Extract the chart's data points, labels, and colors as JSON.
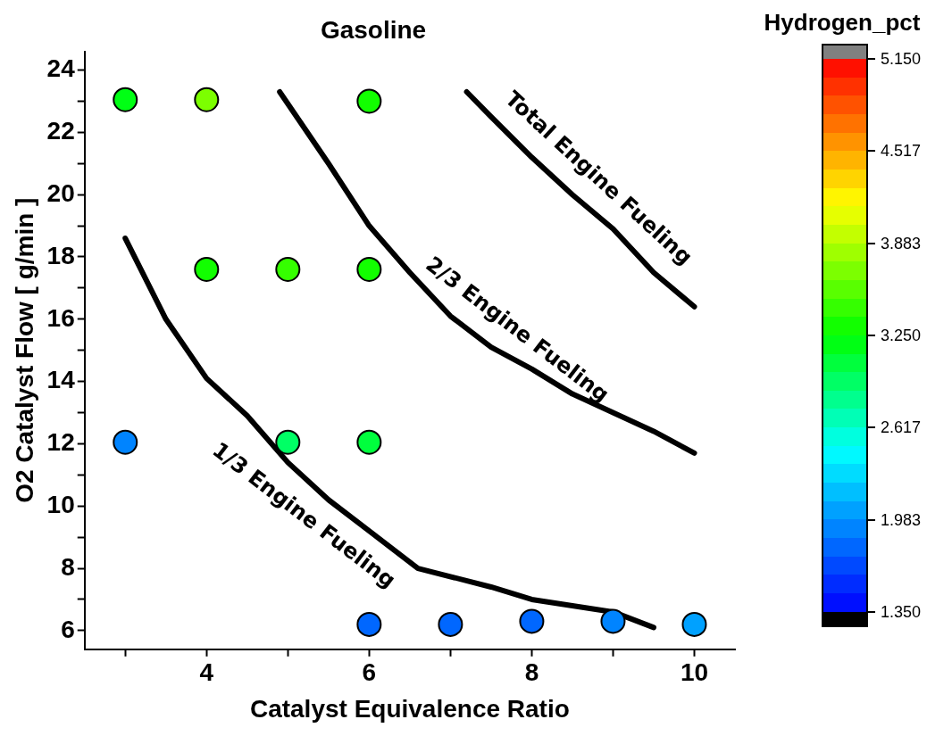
{
  "chart_data": {
    "type": "scatter",
    "title": "Gasoline",
    "xlabel": "Catalyst Equivalence Ratio",
    "ylabel": "O2 Catalyst Flow [ g/min ]",
    "clabel": "Hydrogen_pct",
    "xlim": [
      2.5,
      10.5
    ],
    "xticks": [
      {
        "value": 3,
        "label": null
      },
      4,
      {
        "value": 5,
        "label": null
      },
      6,
      {
        "value": 7,
        "label": null
      },
      8,
      {
        "value": 9,
        "label": null
      },
      10
    ],
    "ylim": [
      5.4,
      24.6
    ],
    "yticks": [
      {
        "value": 7,
        "label": null
      },
      6,
      8,
      {
        "value": 9,
        "label": null
      },
      10,
      {
        "value": 11,
        "label": null
      },
      12,
      {
        "value": 13,
        "label": null
      },
      14,
      {
        "value": 15,
        "label": null
      },
      16,
      {
        "value": 17,
        "label": null
      },
      18,
      {
        "value": 19,
        "label": null
      },
      20,
      {
        "value": 21,
        "label": null
      },
      22,
      {
        "value": 23,
        "label": null
      },
      24
    ],
    "clim": [
      1.35,
      5.15
    ],
    "cticks": [
      {
        "value": 1.35,
        "label": "1.350"
      },
      {
        "value": 1.983,
        "label": "1.983"
      },
      {
        "value": 2.617,
        "label": "2.617"
      },
      {
        "value": 3.25,
        "label": "3.250"
      },
      {
        "value": 3.883,
        "label": "3.883"
      },
      {
        "value": 4.517,
        "label": "4.517"
      },
      {
        "value": 5.15,
        "label": "5.150"
      }
    ],
    "grid": false,
    "legend": false,
    "series": [
      {
        "x": [
          3,
          4,
          6,
          4,
          5,
          6,
          3,
          5,
          6,
          6,
          7,
          8,
          9,
          10
        ],
        "values": [
          23.05,
          23.05,
          23,
          17.6,
          17.6,
          17.6,
          12.05,
          12.05,
          12.05,
          6.2,
          6.2,
          6.3,
          6.3,
          6.2
        ],
        "cvalues": [
          3.2,
          3.7,
          3.3,
          3.3,
          3.5,
          3.3,
          1.9,
          2.9,
          3.1,
          1.85,
          1.85,
          1.85,
          1.9,
          2.0
        ],
        "color": "#000000",
        "marker": "circle"
      },
      {
        "type": "line",
        "name": "1/3 Engine Fueling",
        "color": "#000000",
        "x": [
          3,
          3.5,
          4,
          4.5,
          5,
          5.5,
          6,
          6.6,
          7.5,
          8,
          9,
          9.5
        ],
        "values": [
          18.6,
          16,
          14.1,
          12.9,
          11.4,
          10.2,
          9.2,
          8,
          7.4,
          7,
          6.6,
          6.1
        ]
      },
      {
        "type": "line",
        "name": "2/3 Engine Fueling",
        "color": "#000000",
        "x": [
          4.9,
          5.5,
          6,
          6.5,
          7,
          7.5,
          8,
          8.5,
          9,
          9.5,
          10
        ],
        "values": [
          23.3,
          21,
          19,
          17.5,
          16.1,
          15.1,
          14.4,
          13.6,
          13,
          12.4,
          11.7
        ]
      },
      {
        "type": "line",
        "name": "Total Engine Fueling",
        "color": "#000000",
        "x": [
          7.2,
          7.5,
          8,
          8.5,
          9,
          9.5,
          10
        ],
        "values": [
          23.3,
          22.5,
          21.2,
          20,
          18.9,
          17.5,
          16.4
        ]
      }
    ]
  }
}
